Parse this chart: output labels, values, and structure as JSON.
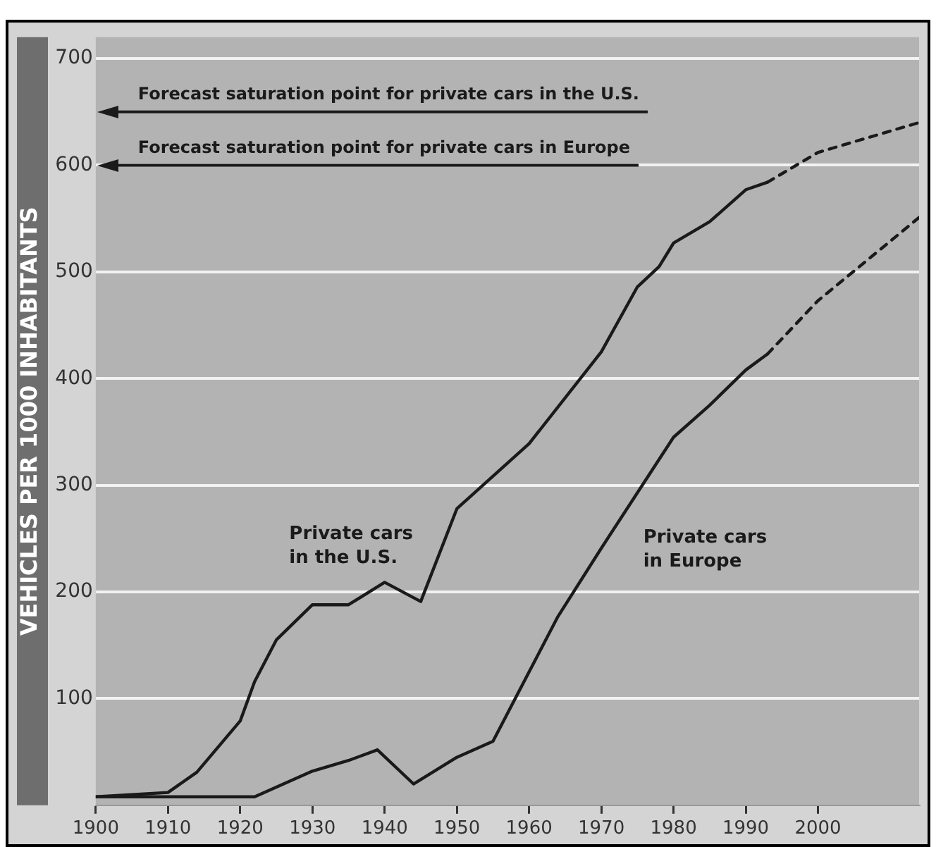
{
  "chart_data": {
    "type": "line",
    "ylabel": "VEHICLES PER 1000 INHABITANTS",
    "xlim": [
      1900,
      2014
    ],
    "xticks": [
      1900,
      1910,
      1920,
      1930,
      1940,
      1950,
      1960,
      1970,
      1980,
      1990,
      2000
    ],
    "ylim": [
      0,
      720
    ],
    "yticks": [
      100,
      200,
      300,
      400,
      500,
      600,
      700
    ],
    "grid": "y",
    "legend": false,
    "marker": "none",
    "series": [
      {
        "color": "#1a1a1a",
        "line_style": "solid",
        "x": [
          1900,
          1910,
          1914,
          1920,
          1922,
          1925,
          1930,
          1935,
          1940,
          1945,
          1950,
          1960,
          1970,
          1975,
          1978,
          1980,
          1985,
          1990,
          1993
        ],
        "values": [
          8,
          12,
          31,
          79,
          116,
          155,
          188,
          188,
          209,
          191,
          278,
          339,
          425,
          486,
          505,
          527,
          547,
          577,
          584
        ]
      },
      {
        "color": "#1a1a1a",
        "line_style": "dashed",
        "x": [
          1993,
          2000,
          2005,
          2014
        ],
        "values": [
          584,
          612,
          622,
          640
        ]
      },
      {
        "color": "#1a1a1a",
        "line_style": "solid",
        "x": [
          1900,
          1922,
          1930,
          1935,
          1939,
          1944,
          1950,
          1955,
          1960,
          1964,
          1970,
          1975,
          1980,
          1985,
          1990,
          1993
        ],
        "values": [
          8,
          8,
          32,
          42,
          52,
          20,
          45,
          60,
          125,
          177,
          241,
          293,
          345,
          375,
          408,
          423
        ]
      },
      {
        "color": "#1a1a1a",
        "line_style": "dashed",
        "x": [
          1993,
          2000,
          2014
        ],
        "values": [
          423,
          473,
          551
        ]
      }
    ],
    "ref_lines": [
      {
        "axis": "y",
        "value": 650,
        "label": "Forecast saturation point for private cars in the U.S."
      },
      {
        "axis": "y",
        "value": 600,
        "label": "Forecast saturation point for private cars in Europe"
      }
    ],
    "annotations": [
      "Private cars\nin the U.S.",
      "Private cars\nin Europe"
    ]
  }
}
